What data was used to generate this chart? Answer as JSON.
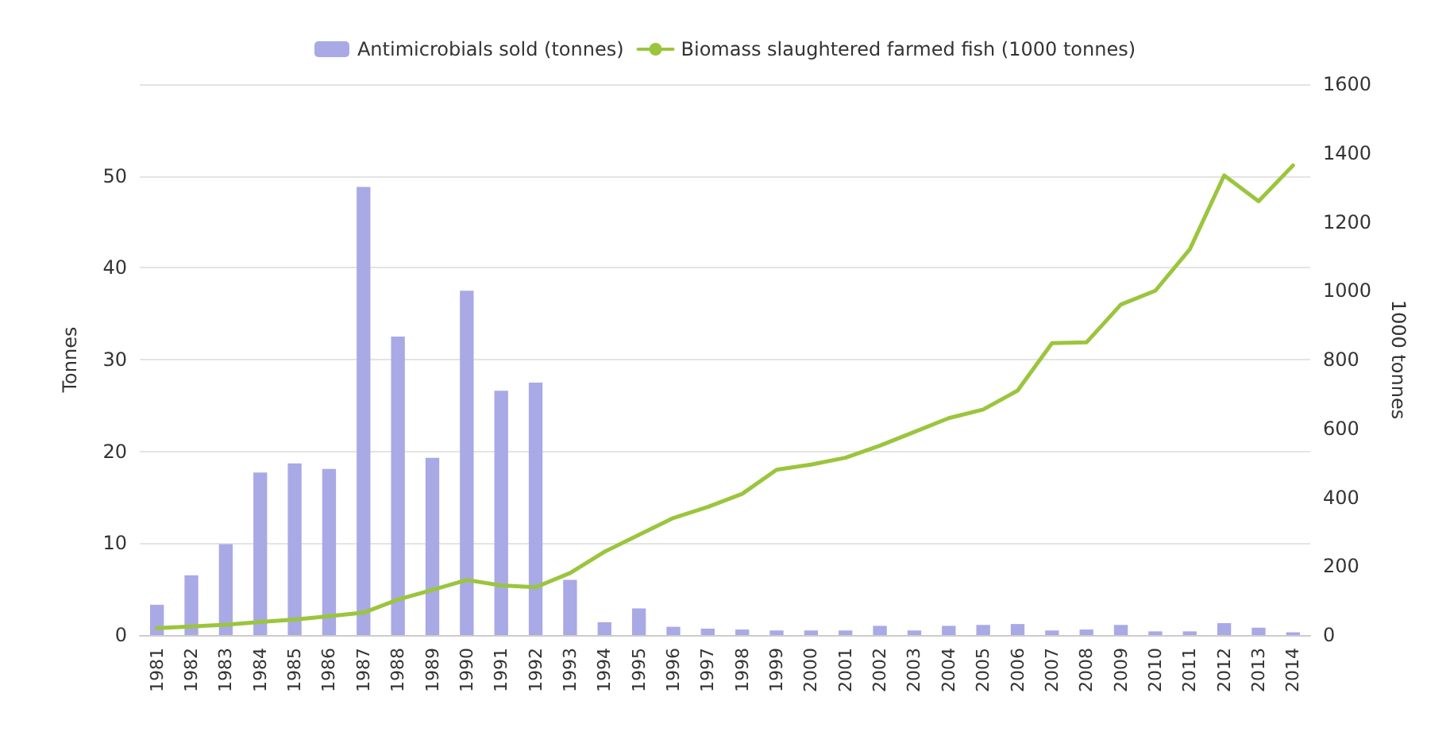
{
  "chart_data": {
    "type": "bar",
    "categories": [
      "1981",
      "1982",
      "1983",
      "1984",
      "1985",
      "1986",
      "1987",
      "1988",
      "1989",
      "1990",
      "1991",
      "1992",
      "1993",
      "1994",
      "1995",
      "1996",
      "1997",
      "1998",
      "1999",
      "2000",
      "2001",
      "2002",
      "2003",
      "2004",
      "2005",
      "2006",
      "2007",
      "2008",
      "2009",
      "2010",
      "2011",
      "2012",
      "2013",
      "2014"
    ],
    "ylabel": "Tonnes",
    "y2label": "1000 tonnes",
    "ylim": [
      0,
      60
    ],
    "yticks": [
      0,
      10,
      20,
      30,
      40,
      50,
      {
        "value": 60,
        "label": null
      }
    ],
    "y2lim": [
      0,
      1600
    ],
    "y2ticks": [
      0,
      200,
      400,
      600,
      800,
      1000,
      1200,
      1400,
      1600
    ],
    "grid": "y",
    "legend": "top",
    "marker": "none",
    "line_style": "solid",
    "series": [
      {
        "name": "Antimicrobials sold (tonnes)",
        "color": "#a9a9e6",
        "values": [
          3.3,
          6.5,
          9.9,
          17.7,
          18.7,
          18.1,
          48.8,
          32.5,
          19.3,
          37.5,
          26.6,
          27.5,
          6.0,
          1.4,
          2.9,
          0.9,
          0.7,
          0.6,
          0.5,
          0.5,
          0.5,
          1.0,
          0.5,
          1.0,
          1.1,
          1.2,
          0.5,
          0.6,
          1.1,
          0.4,
          0.4,
          1.3,
          0.8,
          0.3
        ]
      },
      {
        "name": "Biomass slaughtered farmed fish (1000 tonnes)",
        "type": "line",
        "axis": "y2",
        "color": "#9bc53d",
        "values": [
          20,
          25,
          30,
          38,
          45,
          55,
          65,
          103,
          131,
          160,
          144,
          139,
          180,
          242,
          291,
          340,
          372,
          410,
          480,
          495,
          515,
          550,
          590,
          630,
          655,
          710,
          848,
          850,
          960,
          1000,
          1120,
          1335,
          1260,
          1364
        ]
      }
    ]
  }
}
